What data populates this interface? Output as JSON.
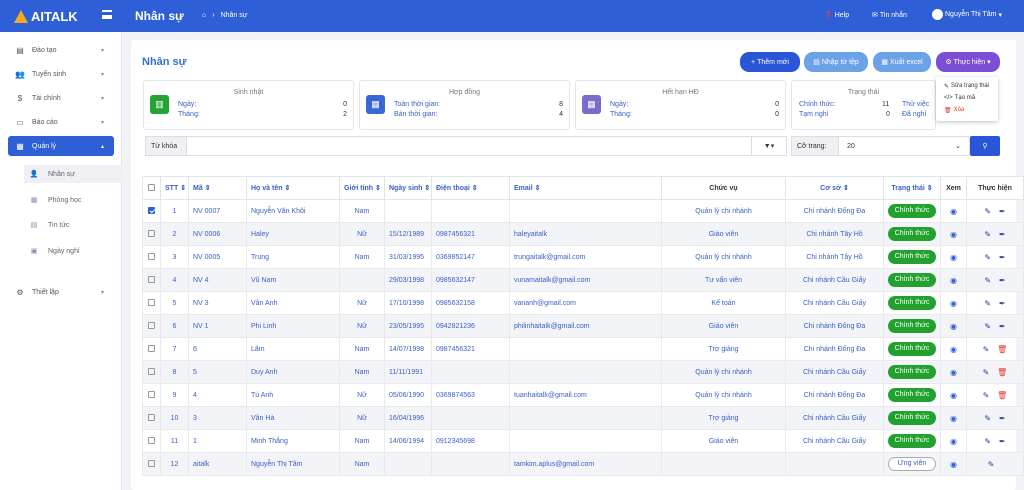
{
  "header": {
    "logo": "AITALK",
    "page": "Nhân sự",
    "breadcrumb": "Nhân sự",
    "help": "Help",
    "messages": "Tin nhắn",
    "user": "Nguyễn Thị Tâm"
  },
  "sidebar": [
    {
      "label": "Đào tạo",
      "icon": "book-icon"
    },
    {
      "label": "Tuyển sinh",
      "icon": "users-icon"
    },
    {
      "label": "Tài chính",
      "icon": "dollar-icon"
    },
    {
      "label": "Báo cáo",
      "icon": "report-icon"
    },
    {
      "label": "Quản lý",
      "icon": "table-icon"
    },
    {
      "label": "Nhân sự",
      "icon": "user-icon"
    },
    {
      "label": "Phòng học",
      "icon": "building-icon"
    },
    {
      "label": "Tin tức",
      "icon": "news-icon"
    },
    {
      "label": "Ngày nghỉ",
      "icon": "calendar-icon"
    },
    {
      "label": "Thiết lập",
      "icon": "cogs-icon"
    }
  ],
  "page": {
    "title": "Nhân sự"
  },
  "buttons": {
    "add": "Thêm mới",
    "import": "Nhập từ tệp",
    "export": "Xuất excel",
    "action": "Thực hiện"
  },
  "dropdown": {
    "item1": "Sửa trạng thái",
    "item2": "Tạo mã",
    "item3": "Xóa"
  },
  "cards": {
    "birthday": {
      "title": "Sinh nhật",
      "r1": "Ngày:",
      "v1": "0",
      "r2": "Tháng:",
      "v2": "2"
    },
    "contract": {
      "title": "Hợp đồng",
      "r1": "Toàn thời gian:",
      "v1": "8",
      "r2": "Bán thời gian:",
      "v2": "4"
    },
    "expired": {
      "title": "Hết hạn HĐ",
      "r1": "Ngày:",
      "v1": "0",
      "r2": "Tháng:",
      "v2": "0"
    },
    "status": {
      "title": "Trạng thái",
      "r1": "Chính thức:",
      "v1": "11",
      "r2": "Tạm nghỉ",
      "v2": "0",
      "r3": "Thử việc",
      "r4": "Đã nghỉ"
    }
  },
  "filter": {
    "keyword_label": "Từ khóa",
    "page_size_label": "Cỡ trang:",
    "page_size": "20"
  },
  "columns": [
    "STT",
    "Mã",
    "Họ và tên",
    "Giới tính",
    "Ngày sinh",
    "Điện thoại",
    "Email",
    "Chức vụ",
    "Cơ sở",
    "Trạng thái",
    "Xem",
    "Thực hiện"
  ],
  "rows": [
    {
      "stt": "1",
      "ma": "NV 0007",
      "name": "Nguyễn Văn Khôi",
      "gender": "Nam",
      "dob": "",
      "phone": "",
      "email": "",
      "role": "Quản lý chi nhánh",
      "branch": "Chi nhánh Đống Đa",
      "status": "Chính thức",
      "checked": true,
      "del": false
    },
    {
      "stt": "2",
      "ma": "NV 0006",
      "name": "Haley",
      "gender": "Nữ",
      "dob": "15/12/1989",
      "phone": "0987456321",
      "email": "haleyaitalk",
      "role": "Giáo viên",
      "branch": "Chi nhánh Tây Hồ",
      "status": "Chính thức",
      "checked": false,
      "del": false
    },
    {
      "stt": "3",
      "ma": "NV 0005",
      "name": "Trung",
      "gender": "Nam",
      "dob": "31/03/1995",
      "phone": "0369852147",
      "email": "trungaitalk@gmail.com",
      "role": "Quản lý chi nhánh",
      "branch": "Chi nhánh Tây Hồ",
      "status": "Chính thức",
      "checked": false,
      "del": false
    },
    {
      "stt": "4",
      "ma": "NV 4",
      "name": "Vũ Nam",
      "gender": "",
      "dob": "29/03/1998",
      "phone": "0985632147",
      "email": "vunamaitalk@gmail.com",
      "role": "Tư vấn viên",
      "branch": "Chi nhánh Cầu Giấy",
      "status": "Chính thức",
      "checked": false,
      "del": false
    },
    {
      "stt": "5",
      "ma": "NV 3",
      "name": "Vân Anh",
      "gender": "Nữ",
      "dob": "17/10/1998",
      "phone": "0985632158",
      "email": "vananh@gmail.com",
      "role": "Kế toán",
      "branch": "Chi nhánh Cầu Giấy",
      "status": "Chính thức",
      "checked": false,
      "del": false
    },
    {
      "stt": "6",
      "ma": "NV 1",
      "name": "Phi Linh",
      "gender": "Nữ",
      "dob": "23/05/1995",
      "phone": "0942821236",
      "email": "philinhaitalk@gmail.com",
      "role": "Giáo viên",
      "branch": "Chi nhánh Đống Đa",
      "status": "Chính thức",
      "checked": false,
      "del": false
    },
    {
      "stt": "7",
      "ma": "6",
      "name": "Lâm",
      "gender": "Nam",
      "dob": "14/07/1998",
      "phone": "0987456321",
      "email": "",
      "role": "Trợ giảng",
      "branch": "Chi nhánh Đống Đa",
      "status": "Chính thức",
      "checked": false,
      "del": true
    },
    {
      "stt": "8",
      "ma": "5",
      "name": "Duy Anh",
      "gender": "Nam",
      "dob": "11/11/1991",
      "phone": "",
      "email": "",
      "role": "Quản lý chi nhánh",
      "branch": "Chi nhánh Cầu Giấy",
      "status": "Chính thức",
      "checked": false,
      "del": true
    },
    {
      "stt": "9",
      "ma": "4",
      "name": "Tú Anh",
      "gender": "Nữ",
      "dob": "05/06/1990",
      "phone": "0369874563",
      "email": "tuanhaitalk@gmail.com",
      "role": "Quản lý chi nhánh",
      "branch": "Chi nhánh Đống Đa",
      "status": "Chính thức",
      "checked": false,
      "del": true
    },
    {
      "stt": "10",
      "ma": "3",
      "name": "Vân Hà",
      "gender": "Nữ",
      "dob": "16/04/1996",
      "phone": "",
      "email": "",
      "role": "Trợ giảng",
      "branch": "Chi nhánh Cầu Giấy",
      "status": "Chính thức",
      "checked": false,
      "del": false
    },
    {
      "stt": "11",
      "ma": "1",
      "name": "Minh Thắng",
      "gender": "Nam",
      "dob": "14/06/1994",
      "phone": "0912345698",
      "email": "",
      "role": "Giáo viên",
      "branch": "Chi nhánh Cầu Giấy",
      "status": "Chính thức",
      "checked": false,
      "del": false
    },
    {
      "stt": "12",
      "ma": "aitalk",
      "name": "Nguyễn Thị Tâm",
      "gender": "Nam",
      "dob": "",
      "phone": "",
      "email": "tamkim.aplus@gmail.com",
      "role": "",
      "branch": "",
      "status": "Ứng viên",
      "checked": false,
      "del": false,
      "outline": true
    }
  ]
}
